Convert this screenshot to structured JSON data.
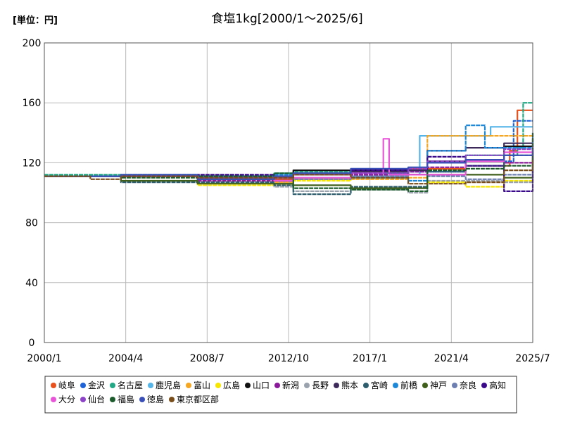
{
  "unit_label": "[単位：円]",
  "chart_data": {
    "type": "line",
    "title": "食塩1kg[2000/1～2025/6]",
    "xlabel": "",
    "ylabel": "",
    "ylim": [
      0,
      200
    ],
    "yticks": [
      0,
      40,
      80,
      120,
      160,
      200
    ],
    "xlim": [
      2000.0,
      2025.5
    ],
    "xticks": [
      {
        "label": "2000/1",
        "value": 2000.0
      },
      {
        "label": "2004/4",
        "value": 2004.25
      },
      {
        "label": "2008/7",
        "value": 2008.5
      },
      {
        "label": "2012/10",
        "value": 2012.75
      },
      {
        "label": "2017/1",
        "value": 2017.0
      },
      {
        "label": "2021/4",
        "value": 2021.25
      },
      {
        "label": "2025/7",
        "value": 2025.5
      }
    ],
    "grid": true,
    "legend_position": "bottom",
    "series": [
      {
        "name": "岐阜",
        "color": "#e8501c",
        "x": [
          2000.0,
          2004.0,
          2008.0,
          2012.0,
          2013.0,
          2016.0,
          2019.0,
          2022.0,
          2024.3,
          2024.7,
          2025.5
        ],
        "values": [
          111,
          111,
          111,
          109,
          113,
          115,
          116,
          118,
          128,
          155,
          155
        ]
      },
      {
        "name": "金沢",
        "color": "#1f63d8",
        "x": [
          2000.0,
          2004.0,
          2008.0,
          2012.0,
          2013.0,
          2016.0,
          2019.0,
          2022.0,
          2024.5,
          2025.5
        ],
        "values": [
          111,
          111,
          110,
          108,
          112,
          113,
          114,
          121,
          148,
          148
        ]
      },
      {
        "name": "名古屋",
        "color": "#22a884",
        "x": [
          2000.0,
          2004.0,
          2008.0,
          2012.0,
          2013.0,
          2016.0,
          2019.0,
          2022.0,
          2024.7,
          2025.0,
          2025.5
        ],
        "values": [
          112,
          112,
          111,
          113,
          114,
          113,
          115,
          125,
          130,
          160,
          160
        ]
      },
      {
        "name": "鹿児島",
        "color": "#55b4e8",
        "x": [
          2000.0,
          2004.0,
          2008.0,
          2012.0,
          2013.0,
          2016.0,
          2019.0,
          2019.6,
          2022.0,
          2023.3,
          2025.5
        ],
        "values": [
          111,
          111,
          110,
          107,
          110,
          111,
          112,
          138,
          138,
          144,
          144
        ]
      },
      {
        "name": "富山",
        "color": "#f5a623",
        "x": [
          2000.0,
          2004.0,
          2008.0,
          2012.0,
          2013.0,
          2016.0,
          2019.0,
          2020.0,
          2024.0,
          2025.5
        ],
        "values": [
          111,
          111,
          111,
          107,
          109,
          109,
          110,
          138,
          138,
          138
        ]
      },
      {
        "name": "広島",
        "color": "#f7e600",
        "x": [
          2000.0,
          2004.0,
          2008.0,
          2012.0,
          2013.0,
          2016.0,
          2019.0,
          2020.0,
          2022.0,
          2024.0,
          2025.5
        ],
        "values": [
          111,
          111,
          105,
          105,
          108,
          110,
          112,
          107,
          104,
          108,
          130
        ]
      },
      {
        "name": "山口",
        "color": "#111111",
        "x": [
          2000.0,
          2004.0,
          2008.0,
          2012.0,
          2013.0,
          2016.0,
          2019.0,
          2020.0,
          2022.0,
          2024.0,
          2025.5
        ],
        "values": [
          111,
          111,
          111,
          111,
          115,
          115,
          112,
          121,
          121,
          131,
          136
        ]
      },
      {
        "name": "新潟",
        "color": "#8b1a9a",
        "x": [
          2000.0,
          2004.0,
          2008.0,
          2012.0,
          2013.0,
          2016.0,
          2019.0,
          2020.0,
          2022.0,
          2024.0,
          2025.5
        ],
        "values": [
          111,
          111,
          108,
          110,
          112,
          112,
          114,
          117,
          118,
          120,
          132
        ]
      },
      {
        "name": "長野",
        "color": "#9aa3ad",
        "x": [
          2000.0,
          2004.0,
          2008.0,
          2012.0,
          2013.0,
          2016.0,
          2019.0,
          2020.0,
          2022.0,
          2024.0,
          2025.5
        ],
        "values": [
          111,
          111,
          107,
          104,
          101,
          102,
          100,
          108,
          108,
          107,
          128
        ]
      },
      {
        "name": "熊本",
        "color": "#3d2a5a",
        "x": [
          2000.0,
          2004.0,
          2008.0,
          2012.0,
          2013.0,
          2016.0,
          2019.0,
          2020.0,
          2022.0,
          2024.0,
          2025.5
        ],
        "values": [
          111,
          111,
          109,
          108,
          113,
          114,
          115,
          128,
          130,
          133,
          133
        ]
      },
      {
        "name": "宮崎",
        "color": "#2e5e6e",
        "x": [
          2000.0,
          2004.0,
          2008.0,
          2012.0,
          2013.0,
          2016.0,
          2019.0,
          2020.0,
          2022.0,
          2024.0,
          2025.5
        ],
        "values": [
          111,
          107,
          107,
          105,
          99,
          104,
          104,
          114,
          118,
          125,
          128
        ]
      },
      {
        "name": "前橋",
        "color": "#1e88d8",
        "x": [
          2000.0,
          2004.0,
          2008.0,
          2012.0,
          2013.0,
          2016.0,
          2019.0,
          2020.0,
          2022.0,
          2023.0,
          2025.5
        ],
        "values": [
          111,
          111,
          111,
          112,
          113,
          110,
          108,
          128,
          145,
          130,
          140
        ]
      },
      {
        "name": "神戸",
        "color": "#3f5f1a",
        "x": [
          2000.0,
          2004.0,
          2008.0,
          2012.0,
          2013.0,
          2016.0,
          2019.0,
          2020.0,
          2022.0,
          2024.0,
          2025.5
        ],
        "values": [
          111,
          108,
          106,
          106,
          105,
          103,
          103,
          112,
          112,
          110,
          128
        ]
      },
      {
        "name": "奈良",
        "color": "#6c7fb0",
        "x": [
          2000.0,
          2004.0,
          2008.0,
          2012.0,
          2013.0,
          2016.0,
          2019.0,
          2020.0,
          2022.0,
          2024.0,
          2025.5
        ],
        "values": [
          111,
          111,
          110,
          108,
          109,
          111,
          112,
          111,
          109,
          112,
          124
        ]
      },
      {
        "name": "高知",
        "color": "#3b0a8a",
        "x": [
          2000.0,
          2004.0,
          2008.0,
          2012.0,
          2013.0,
          2016.0,
          2019.0,
          2020.0,
          2022.0,
          2024.0,
          2025.5
        ],
        "values": [
          111,
          111,
          112,
          108,
          112,
          115,
          112,
          124,
          118,
          101,
          127
        ]
      },
      {
        "name": "大分",
        "color": "#e855d8",
        "x": [
          2000.0,
          2004.0,
          2008.0,
          2012.0,
          2013.0,
          2016.0,
          2017.7,
          2018.0,
          2019.0,
          2022.0,
          2024.0,
          2025.5
        ],
        "values": [
          111,
          111,
          110,
          108,
          110,
          113,
          136,
          112,
          112,
          121,
          127,
          130
        ]
      },
      {
        "name": "仙台",
        "color": "#8e44c8",
        "x": [
          2000.0,
          2004.0,
          2008.0,
          2012.0,
          2013.0,
          2016.0,
          2019.0,
          2020.0,
          2022.0,
          2024.0,
          2025.5
        ],
        "values": [
          111,
          111,
          110,
          110,
          112,
          113,
          116,
          121,
          125,
          129,
          131
        ]
      },
      {
        "name": "福島",
        "color": "#1c5c2c",
        "x": [
          2000.0,
          2004.0,
          2008.0,
          2012.0,
          2013.0,
          2016.0,
          2019.0,
          2020.0,
          2022.0,
          2024.0,
          2025.5
        ],
        "values": [
          111,
          110,
          111,
          113,
          103,
          102,
          101,
          115,
          116,
          118,
          140
        ]
      },
      {
        "name": "徳島",
        "color": "#3a50b8",
        "x": [
          2000.0,
          2004.0,
          2008.0,
          2012.0,
          2013.0,
          2016.0,
          2019.0,
          2020.0,
          2022.0,
          2024.0,
          2025.5
        ],
        "values": [
          111,
          112,
          109,
          111,
          113,
          116,
          117,
          120,
          122,
          125,
          129
        ]
      },
      {
        "name": "東京都区部",
        "color": "#7a4e1a",
        "x": [
          2000.0,
          2002.2,
          2002.4,
          2004.0,
          2008.0,
          2012.0,
          2013.0,
          2016.0,
          2019.0,
          2022.0,
          2024.0,
          2025.5
        ],
        "values": [
          111,
          111,
          109,
          111,
          110,
          110,
          112,
          110,
          106,
          107,
          115,
          122
        ]
      }
    ]
  }
}
